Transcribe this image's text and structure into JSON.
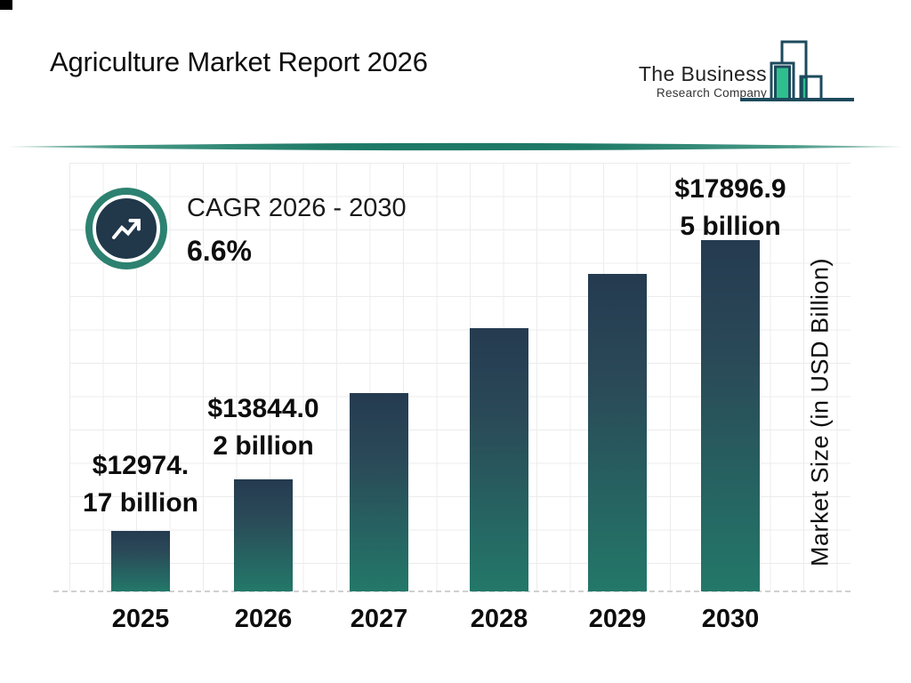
{
  "header": {
    "title": "Agriculture Market Report 2026",
    "logo": {
      "line1": "The Business",
      "line2": "Research Company"
    }
  },
  "chart_data": {
    "type": "bar",
    "title": "Agriculture Market Report 2026",
    "xlabel": "",
    "ylabel": "Market Size (in USD Billion)",
    "ylim": [
      11950,
      19210
    ],
    "grid": true,
    "legend": "none",
    "categories": [
      "2025",
      "2026",
      "2027",
      "2028",
      "2029",
      "2030"
    ],
    "series": [
      {
        "name": "Market Size (in USD Billion)",
        "values": [
          12974.17,
          13844.02,
          15310,
          16410,
          17320,
          17896.95
        ]
      }
    ],
    "value_labels": [
      "$12974.17 billion",
      "$13844.02 billion",
      null,
      null,
      null,
      "$17896.95 billion"
    ],
    "value_label_lines": [
      [
        "$12974.",
        "17 billion"
      ],
      [
        "$13844.0",
        "2 billion"
      ],
      null,
      null,
      null,
      [
        "$17896.9",
        "5 billion"
      ]
    ],
    "cagr": {
      "label": "CAGR 2026 - 2030",
      "value": "6.6%"
    }
  },
  "icons": {
    "badge": "trending-up-icon",
    "logo": "bar-buildings-logo-mark"
  },
  "colors": {
    "bar_gradient_top": "#253b50",
    "bar_gradient_bottom": "#237869",
    "accent_teal": "#2d8170",
    "badge_navy": "#21374a",
    "divider_teal": "#1e7a67",
    "logo_outline": "#1d4a5c",
    "logo_green": "#2fbe8e",
    "grid_line": "#ececec",
    "baseline_dash": "#d0d0d0",
    "text": "#111111"
  }
}
